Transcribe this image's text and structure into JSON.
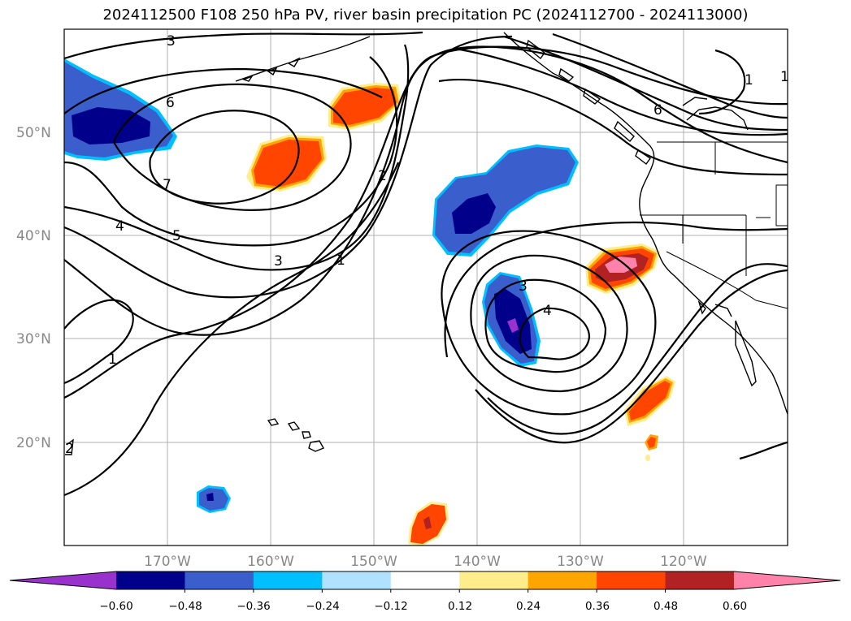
{
  "title": "2024112500 F108 250 hPa PV, river basin precipitation PC (2024112700 - 2024113000)",
  "map": {
    "lat_labels": [
      "50°N",
      "40°N",
      "30°N",
      "20°N"
    ],
    "lon_labels": [
      "170°W",
      "160°W",
      "150°W",
      "140°W",
      "130°W",
      "120°W"
    ],
    "contour_labels": [
      "3",
      "6",
      "7",
      "5",
      "4",
      "3",
      "2",
      "1",
      "3",
      "4",
      "6",
      "1",
      "1",
      "1",
      "2"
    ]
  },
  "colorbar": {
    "ticks": [
      "−0.60",
      "−0.48",
      "−0.36",
      "−0.24",
      "−0.12",
      "0.12",
      "0.24",
      "0.36",
      "0.48",
      "0.60"
    ],
    "colors": [
      "#9932cc",
      "#00008b",
      "#3a5fcd",
      "#00bfff",
      "#b0e2ff",
      "#ffffff",
      "#ffec8b",
      "#ffa500",
      "#ff4500",
      "#b22222",
      "#ff82ab"
    ]
  }
}
